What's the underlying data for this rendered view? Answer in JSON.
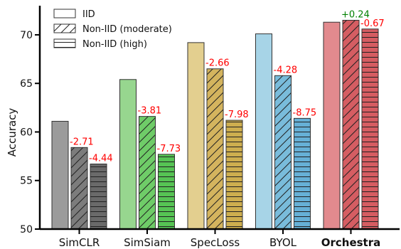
{
  "chart_data": {
    "type": "bar",
    "ylabel": "Accuracy",
    "ylim": [
      50,
      73
    ],
    "yticks": [
      50,
      55,
      60,
      65,
      70
    ],
    "categories": [
      "SimCLR",
      "SimSiam",
      "SpecLoss",
      "BYOL",
      "Orchestra"
    ],
    "bold_categories": [
      "Orchestra"
    ],
    "legend_position": "top-left",
    "series": [
      {
        "name": "IID",
        "pattern": "none",
        "values": [
          61.1,
          65.4,
          69.2,
          70.1,
          71.3
        ]
      },
      {
        "name": "Non-IID (moderate)",
        "pattern": "diagonal",
        "values": [
          58.4,
          61.6,
          66.5,
          65.8,
          71.5
        ]
      },
      {
        "name": "Non-IID (high)",
        "pattern": "horizontal",
        "values": [
          56.7,
          57.7,
          61.2,
          61.4,
          70.6
        ]
      }
    ],
    "delta_labels": [
      [
        null,
        "-2.71",
        "-4.44"
      ],
      [
        null,
        "-3.81",
        "-7.73"
      ],
      [
        null,
        "-2.66",
        "-7.98"
      ],
      [
        null,
        "-4.28",
        "-8.75"
      ],
      [
        null,
        "+0.24",
        "-0.67"
      ]
    ],
    "colors": {
      "SimCLR": [
        "#9b9b9b",
        "#7c7c7c",
        "#6a6a6a"
      ],
      "SimSiam": [
        "#97d68f",
        "#6fcc68",
        "#56c354"
      ],
      "SpecLoss": [
        "#e3cf8f",
        "#d4b45e",
        "#cdae4f"
      ],
      "BYOL": [
        "#a7d4e7",
        "#79bcdb",
        "#66b0d6"
      ],
      "Orchestra": [
        "#e28a8e",
        "#d55d62",
        "#d55d62"
      ]
    },
    "delta_colors": {
      "negative": "#ff0000",
      "positive": "#008000"
    }
  }
}
